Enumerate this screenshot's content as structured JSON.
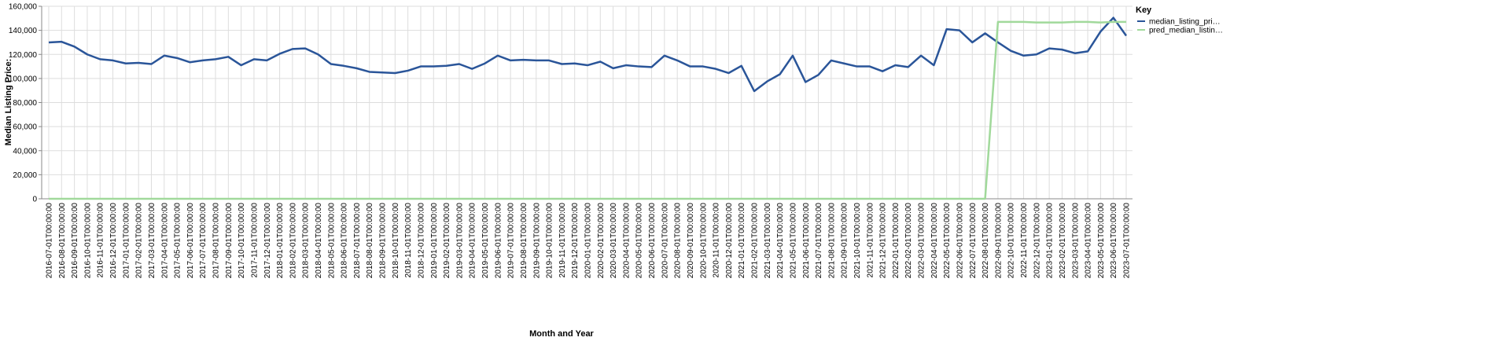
{
  "chart_data": {
    "type": "line",
    "x_label": "Month and Year",
    "y_label": "Median Listing Price:",
    "legend_title": "Key",
    "categories": [
      "2016-07-01T00:00:00",
      "2016-08-01T00:00:00",
      "2016-09-01T00:00:00",
      "2016-10-01T00:00:00",
      "2016-11-01T00:00:00",
      "2016-12-01T00:00:00",
      "2017-01-01T00:00:00",
      "2017-02-01T00:00:00",
      "2017-03-01T00:00:00",
      "2017-04-01T00:00:00",
      "2017-05-01T00:00:00",
      "2017-06-01T00:00:00",
      "2017-07-01T00:00:00",
      "2017-08-01T00:00:00",
      "2017-09-01T00:00:00",
      "2017-10-01T00:00:00",
      "2017-11-01T00:00:00",
      "2017-12-01T00:00:00",
      "2018-01-01T00:00:00",
      "2018-02-01T00:00:00",
      "2018-03-01T00:00:00",
      "2018-04-01T00:00:00",
      "2018-05-01T00:00:00",
      "2018-06-01T00:00:00",
      "2018-07-01T00:00:00",
      "2018-08-01T00:00:00",
      "2018-09-01T00:00:00",
      "2018-10-01T00:00:00",
      "2018-11-01T00:00:00",
      "2018-12-01T00:00:00",
      "2019-01-01T00:00:00",
      "2019-02-01T00:00:00",
      "2019-03-01T00:00:00",
      "2019-04-01T00:00:00",
      "2019-05-01T00:00:00",
      "2019-06-01T00:00:00",
      "2019-07-01T00:00:00",
      "2019-08-01T00:00:00",
      "2019-09-01T00:00:00",
      "2019-10-01T00:00:00",
      "2019-11-01T00:00:00",
      "2019-12-01T00:00:00",
      "2020-01-01T00:00:00",
      "2020-02-01T00:00:00",
      "2020-03-01T00:00:00",
      "2020-04-01T00:00:00",
      "2020-05-01T00:00:00",
      "2020-06-01T00:00:00",
      "2020-07-01T00:00:00",
      "2020-08-01T00:00:00",
      "2020-09-01T00:00:00",
      "2020-10-01T00:00:00",
      "2020-11-01T00:00:00",
      "2020-12-01T00:00:00",
      "2021-01-01T00:00:00",
      "2021-02-01T00:00:00",
      "2021-03-01T00:00:00",
      "2021-04-01T00:00:00",
      "2021-05-01T00:00:00",
      "2021-06-01T00:00:00",
      "2021-07-01T00:00:00",
      "2021-08-01T00:00:00",
      "2021-09-01T00:00:00",
      "2021-10-01T00:00:00",
      "2021-11-01T00:00:00",
      "2021-12-01T00:00:00",
      "2022-01-01T00:00:00",
      "2022-02-01T00:00:00",
      "2022-03-01T00:00:00",
      "2022-04-01T00:00:00",
      "2022-05-01T00:00:00",
      "2022-06-01T00:00:00",
      "2022-07-01T00:00:00",
      "2022-08-01T00:00:00",
      "2022-09-01T00:00:00",
      "2022-10-01T00:00:00",
      "2022-11-01T00:00:00",
      "2022-12-01T00:00:00",
      "2023-01-01T00:00:00",
      "2023-02-01T00:00:00",
      "2023-03-01T00:00:00",
      "2023-04-01T00:00:00",
      "2023-05-01T00:00:00",
      "2023-06-01T00:00:00",
      "2023-07-01T00:00:00"
    ],
    "series": [
      {
        "name": "median_listing_pri…",
        "color": "#2a5599",
        "values": [
          130000,
          130500,
          126500,
          120000,
          116000,
          115000,
          112500,
          113000,
          112000,
          119000,
          117000,
          113500,
          115000,
          116000,
          118000,
          111000,
          116000,
          115000,
          120500,
          124500,
          125000,
          120000,
          112000,
          110500,
          108500,
          105500,
          105000,
          104500,
          106500,
          110000,
          110000,
          110500,
          112000,
          108000,
          112500,
          119000,
          115000,
          115500,
          115000,
          115000,
          112000,
          112500,
          111000,
          114000,
          108500,
          111000,
          110000,
          109500,
          119000,
          115000,
          110000,
          110000,
          108000,
          104500,
          110500,
          89500,
          97500,
          103500,
          119000,
          97000,
          103000,
          115000,
          112500,
          110000,
          110000,
          106000,
          111000,
          109500,
          119000,
          111000,
          141000,
          140000,
          130000,
          137500,
          130000,
          123000,
          119000,
          120000,
          125000,
          124000,
          121000,
          122500,
          139000,
          150500,
          135500
        ]
      },
      {
        "name": "pred_median_listin…",
        "color": "#a1d99b",
        "values": [
          0,
          0,
          0,
          0,
          0,
          0,
          0,
          0,
          0,
          0,
          0,
          0,
          0,
          0,
          0,
          0,
          0,
          0,
          0,
          0,
          0,
          0,
          0,
          0,
          0,
          0,
          0,
          0,
          0,
          0,
          0,
          0,
          0,
          0,
          0,
          0,
          0,
          0,
          0,
          0,
          0,
          0,
          0,
          0,
          0,
          0,
          0,
          0,
          0,
          0,
          0,
          0,
          0,
          0,
          0,
          0,
          0,
          0,
          0,
          0,
          0,
          0,
          0,
          0,
          0,
          0,
          0,
          0,
          0,
          0,
          0,
          0,
          0,
          0,
          147000,
          147000,
          147000,
          146500,
          146500,
          146500,
          147000,
          147000,
          146500,
          147000,
          147000
        ]
      }
    ],
    "ylim": [
      0,
      160000
    ],
    "yticks": [
      0,
      {
        "value": 20000,
        "label": "20,000"
      },
      {
        "value": 40000,
        "label": "40,000"
      },
      {
        "value": 60000,
        "label": "60,000"
      },
      {
        "value": 80000,
        "label": "80,000"
      },
      {
        "value": 100000,
        "label": "100,000"
      },
      {
        "value": 120000,
        "label": "120,000"
      },
      {
        "value": 140000,
        "label": "140,000"
      },
      {
        "value": 160000,
        "label": "160,000"
      }
    ],
    "grid": true
  }
}
